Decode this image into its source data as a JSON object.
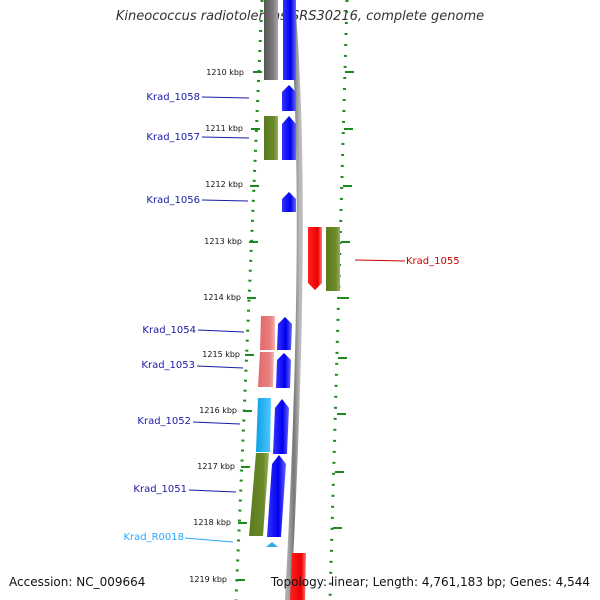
{
  "title": "Kineococcus radiotolerans SRS30216, complete genome",
  "accession": "Accession: NC_009664",
  "summary": "Topology: linear; Length: 4,761,183 bp; Genes: 4,544",
  "colors": {
    "gene_label": "#1a1aa8",
    "gene_label_right": "#cc0000",
    "rna_label": "#22aaff",
    "cds_blue": "#0000ff",
    "pseudo_olive": "#6b8a2a",
    "rna_red": "#ff0000",
    "pink": "#e87070",
    "cyan": "#11aaee",
    "grey": "#777777",
    "track_dots": "#1d8a1d"
  },
  "ticks": [
    "1210 kbp",
    "1211 kbp",
    "1212 kbp",
    "1213 kbp",
    "1214 kbp",
    "1215 kbp",
    "1216 kbp",
    "1217 kbp",
    "1218 kbp",
    "1219 kbp"
  ],
  "labels": [
    {
      "text": "Krad_1058",
      "side": "left",
      "color": "gene_label"
    },
    {
      "text": "Krad_1057",
      "side": "left",
      "color": "gene_label"
    },
    {
      "text": "Krad_1056",
      "side": "left",
      "color": "gene_label"
    },
    {
      "text": "Krad_1055",
      "side": "right",
      "color": "gene_label_right"
    },
    {
      "text": "Krad_1054",
      "side": "left",
      "color": "gene_label"
    },
    {
      "text": "Krad_1053",
      "side": "left",
      "color": "gene_label"
    },
    {
      "text": "Krad_1052",
      "side": "left",
      "color": "gene_label"
    },
    {
      "text": "Krad_1051",
      "side": "left",
      "color": "gene_label"
    },
    {
      "text": "Krad_R0018",
      "side": "left",
      "color": "rna_label"
    }
  ]
}
